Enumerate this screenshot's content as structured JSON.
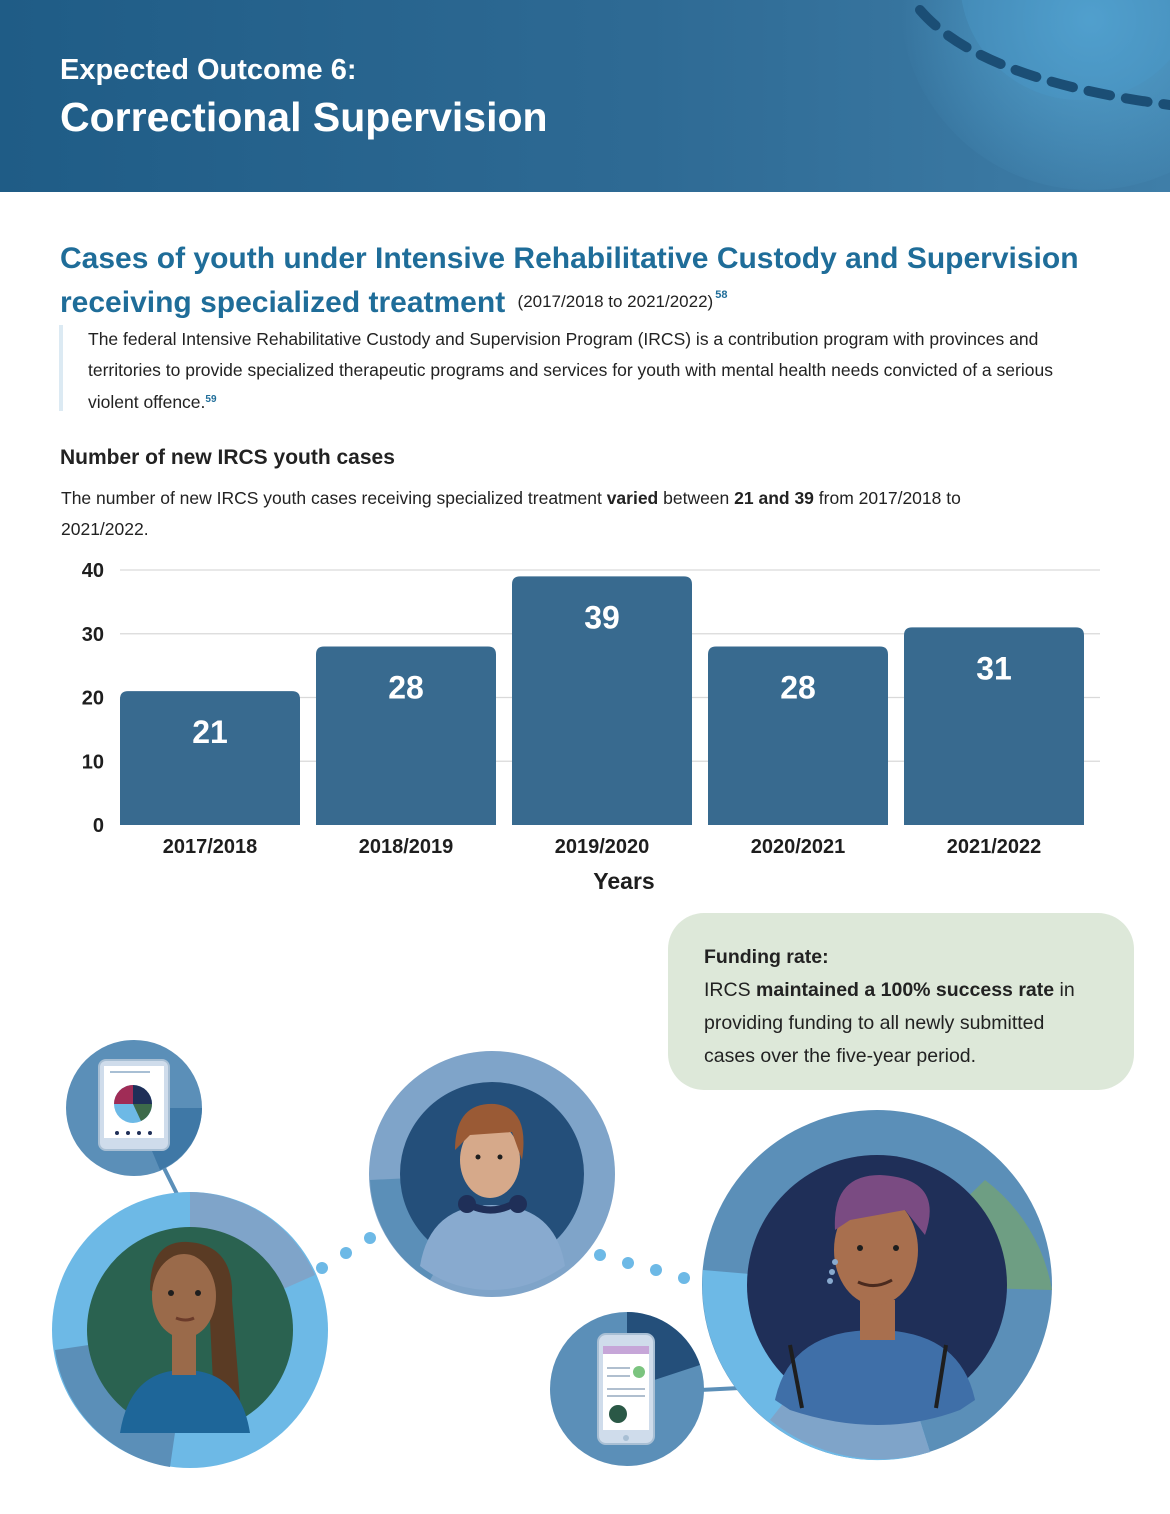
{
  "banner": {
    "kicker": "Expected Outcome 6:",
    "title": "Correctional Supervision"
  },
  "section": {
    "title": "Cases of youth under Intensive Rehabilitative Custody and Supervision receiving specialized treatment",
    "range": "(2017/2018 to 2021/2022)",
    "footnote": "58"
  },
  "intro": {
    "text": "The federal Intensive Rehabilitative Custody and Supervision Program (IRCS) is a contribution program with provinces and territories to provide specialized therapeutic programs and services for youth with mental health needs convicted of a serious violent offence.",
    "footnote": "59"
  },
  "chart_heading": "Number of new IRCS youth cases",
  "chart_desc": {
    "part1": "The number of new IRCS youth cases receiving specialized treatment ",
    "bold1": "varied",
    "part2": " between ",
    "bold2": "21 and 39",
    "part3": " from 2017/2018 to 2021/2022."
  },
  "chart_data": {
    "type": "bar",
    "title": "Number of new IRCS youth cases",
    "categories": [
      "2017/2018",
      "2018/2019",
      "2019/2020",
      "2020/2021",
      "2021/2022"
    ],
    "values": [
      21,
      28,
      39,
      28,
      31
    ],
    "xlabel": "Years",
    "ylabel": "",
    "ylim": [
      0,
      40
    ],
    "yticks": [
      0,
      10,
      20,
      30,
      40
    ],
    "grid": true,
    "legend": "none",
    "bar_color": "#386a8f"
  },
  "callout": {
    "heading": "Funding rate:",
    "pre": "IRCS ",
    "bold": "maintained a 100% success rate",
    "post": " in providing funding to all newly submitted cases over the five-year period."
  },
  "colors": {
    "banner": "#1f5c86",
    "accent": "#1f6d99",
    "callout_bg": "#dde8d9",
    "ring_light": "#6db9e6",
    "ring_mid": "#5b8fb8",
    "portrait_navy": "#1f2f58"
  }
}
